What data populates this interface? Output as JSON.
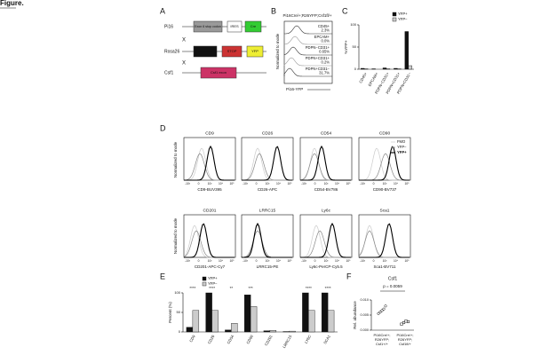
{
  "header": {
    "title": "Figure."
  },
  "panel_a": {
    "letter": "A",
    "cross": "X",
    "rows": [
      {
        "gene": "Pi16",
        "boxes": [
          "Exon 6 stop codon",
          "IRES",
          "Cre"
        ]
      },
      {
        "gene": "Rosa26",
        "boxes": [
          "promoter",
          "STOP",
          "YFP"
        ]
      },
      {
        "gene": "Csf1",
        "boxes": [
          "Csf1 exon"
        ]
      }
    ]
  },
  "panel_b": {
    "letter": "B",
    "title": "Pi16Cre/+;R26YFP;Csf1fl/+",
    "ylabel": "Normalized to mode",
    "xlabel": "Pi16-YFP",
    "populations": [
      [
        "CD45+",
        "2.3%"
      ],
      [
        "EPCAM+",
        "0.0%"
      ],
      [
        "PDPN−CD31+",
        "0.65%"
      ],
      [
        "PDPN+CD31+",
        "0.2%"
      ],
      [
        "PDPN+CD31−",
        "31.7%"
      ]
    ]
  },
  "panel_c": {
    "letter": "C",
    "chart_data": {
      "type": "bar",
      "ylabel": "%YFP+",
      "categories": [
        "CD45+",
        "EPCAM+",
        "PDPN−CD31+",
        "PDPN+CD31+",
        "PDPN+CD31−"
      ],
      "series": [
        {
          "name": "YFP+",
          "color": "#111111",
          "values": [
            2,
            1,
            3,
            2,
            85
          ]
        },
        {
          "name": "YFP−",
          "color": "#cccccc",
          "values": [
            1,
            0,
            1,
            1,
            8
          ]
        }
      ],
      "ylim": [
        0,
        100
      ],
      "yticks": [
        0,
        50,
        100
      ]
    }
  },
  "panel_d": {
    "letter": "D",
    "ylabel": "Normalized to mode",
    "tick_labels": [
      "-10³",
      "0",
      "10³",
      "10⁴",
      "10⁵"
    ],
    "legend": [
      "FMO",
      "YFP−",
      "YFP+"
    ],
    "markers": [
      {
        "name": "CD9",
        "axis_label": "CD9-BUV395"
      },
      {
        "name": "CD26",
        "axis_label": "CD26-APC"
      },
      {
        "name": "CD54",
        "axis_label": "CD54-BV786"
      },
      {
        "name": "CD90",
        "axis_label": "CD90-BV737"
      },
      {
        "name": "CD201",
        "axis_label": "CD201-APC-Cy7"
      },
      {
        "name": "LRRC15",
        "axis_label": "LRRC15-PE"
      },
      {
        "name": "Ly6c",
        "axis_label": "Ly6c-PerCP-Cy5.5"
      },
      {
        "name": "Sca1",
        "axis_label": "Sca1-BV711"
      }
    ]
  },
  "panel_e": {
    "letter": "E",
    "chart_data": {
      "type": "bar",
      "ylabel": "Percent (%)",
      "categories": [
        "CD9",
        "CD26",
        "CD54",
        "CD90",
        "CD201",
        "LRRC15",
        "LY6C",
        "SCA1"
      ],
      "series": [
        {
          "name": "YFP+",
          "color": "#111111",
          "values": [
            12,
            100,
            5,
            95,
            3,
            1,
            100,
            100
          ]
        },
        {
          "name": "YFP−",
          "color": "#cccccc",
          "values": [
            55,
            55,
            22,
            65,
            4,
            2,
            55,
            55
          ]
        }
      ],
      "significance": [
        "****",
        "****",
        "**",
        "***",
        null,
        null,
        "****",
        "****"
      ],
      "ylim": [
        0,
        100
      ],
      "yticks": [
        0,
        50,
        100
      ]
    }
  },
  "panel_f": {
    "letter": "F",
    "chart_data": {
      "type": "scatter",
      "title": "Csf1",
      "annotation": "p = 0.0059",
      "ylabel": "Rel. abundance",
      "groups": [
        {
          "label": [
            "Pi16Cre/+;",
            "R26YFP;",
            "Csf1+/+"
          ],
          "values": [
            0.0055,
            0.006,
            0.0065,
            0.007,
            0.008
          ]
        },
        {
          "label": [
            "Pi16Cre/+;",
            "R26YFP;",
            "Csf1fl/+"
          ],
          "values": [
            0.002,
            0.0025,
            0.003,
            0.0028
          ]
        }
      ],
      "ylim": [
        0,
        0.01
      ],
      "yticks": [
        {
          "value": 0,
          "label": "0.000"
        },
        {
          "value": 0.005,
          "label": "0.005"
        },
        {
          "value": 0.01,
          "label": "0.010"
        }
      ]
    }
  }
}
